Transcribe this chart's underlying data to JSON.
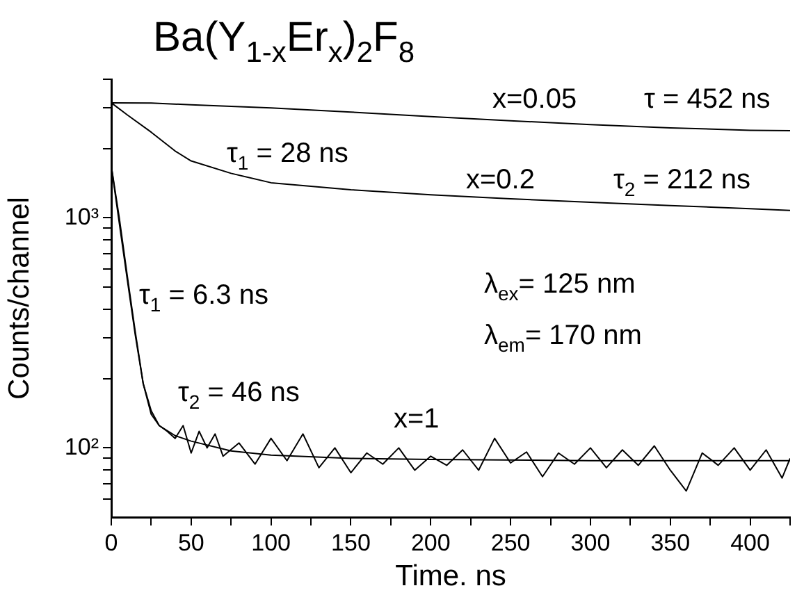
{
  "chart_data": {
    "type": "line",
    "title": "Ba(Y$_{1-x}$Er$_{x}$)$_{2}$F$_{8}$",
    "xlabel": "Time. ns",
    "ylabel": "Counts/channel",
    "log": "y",
    "grid": false,
    "legend": false,
    "marker": "none",
    "line_style": "solid",
    "xlim": [
      0,
      425
    ],
    "xticks": [
      0,
      {
        "value": 25,
        "label": null
      },
      50,
      {
        "value": 75,
        "label": null
      },
      100,
      {
        "value": 125,
        "label": null
      },
      150,
      {
        "value": 175,
        "label": null
      },
      200,
      {
        "value": 225,
        "label": null
      },
      250,
      {
        "value": 275,
        "label": null
      },
      300,
      {
        "value": 325,
        "label": null
      },
      350,
      {
        "value": 375,
        "label": null
      },
      400,
      {
        "value": 425,
        "label": null
      }
    ],
    "ylim": [
      50,
      4000
    ],
    "yticks": [
      {
        "value": 60,
        "label": null
      },
      {
        "value": 70,
        "label": null
      },
      {
        "value": 80,
        "label": null
      },
      {
        "value": 90,
        "label": null
      },
      {
        "value": 100,
        "label": "10²"
      },
      {
        "value": 200,
        "label": null
      },
      {
        "value": 300,
        "label": null
      },
      {
        "value": 400,
        "label": null
      },
      {
        "value": 500,
        "label": null
      },
      {
        "value": 600,
        "label": null
      },
      {
        "value": 700,
        "label": null
      },
      {
        "value": 800,
        "label": null
      },
      {
        "value": 900,
        "label": null
      },
      {
        "value": 1000,
        "label": "10³"
      },
      {
        "value": 2000,
        "label": null
      },
      {
        "value": 3000,
        "label": null
      },
      {
        "value": 4000,
        "label": null
      }
    ],
    "series": [
      {
        "color": "#000000",
        "x": [
          0,
          25,
          50,
          100,
          150,
          200,
          250,
          300,
          350,
          400,
          425
        ],
        "values": [
          3160,
          3150,
          3100,
          3000,
          2880,
          2750,
          2640,
          2540,
          2460,
          2400,
          2390
        ]
      },
      {
        "color": "#000000",
        "x": [
          0,
          10,
          25,
          40,
          50,
          75,
          100,
          150,
          200,
          250,
          300,
          350,
          400,
          425
        ],
        "values": [
          3160,
          2800,
          2355,
          1950,
          1766,
          1560,
          1420,
          1324,
          1259,
          1210,
          1167,
          1130,
          1095,
          1077
        ]
      },
      {
        "color": "#000000",
        "x": [
          0,
          5,
          10,
          15,
          20,
          25,
          30,
          35,
          40,
          45,
          50,
          55,
          60,
          65,
          70,
          80,
          90,
          100,
          110,
          120,
          130,
          140,
          150,
          160,
          170,
          180,
          190,
          200,
          210,
          220,
          230,
          240,
          250,
          260,
          270,
          280,
          290,
          300,
          310,
          320,
          330,
          340,
          350,
          360,
          370,
          380,
          390,
          400,
          410,
          420,
          425
        ],
        "values": [
          1680,
          1000,
          560,
          320,
          190,
          145,
          125,
          118,
          110,
          125,
          95,
          118,
          100,
          115,
          92,
          105,
          85,
          110,
          88,
          115,
          82,
          100,
          78,
          95,
          85,
          100,
          80,
          92,
          84,
          98,
          80,
          110,
          86,
          96,
          75,
          95,
          85,
          100,
          82,
          98,
          84,
          102,
          80,
          65,
          95,
          84,
          100,
          80,
          98,
          74,
          90
        ]
      },
      {
        "color": "#000000",
        "x": [
          0,
          5,
          10,
          15,
          20,
          25,
          30,
          40,
          50,
          75,
          100,
          150,
          200,
          300,
          425
        ],
        "values": [
          1680,
          950,
          540,
          310,
          190,
          140,
          125,
          113,
          107,
          97,
          93,
          90,
          89,
          88,
          88
        ]
      }
    ],
    "annotations": [
      "x=0.05",
      "τ = 452 ns",
      "τ$_{1}$ = 28 ns",
      "x=0.2",
      "τ$_{2}$ = 212 ns",
      "τ$_{1}$ = 6.3 ns",
      "τ$_{2}$ = 46 ns",
      "x=1",
      "λ$_{ex}$= 125 nm",
      "λ$_{em}$= 170 nm"
    ]
  }
}
